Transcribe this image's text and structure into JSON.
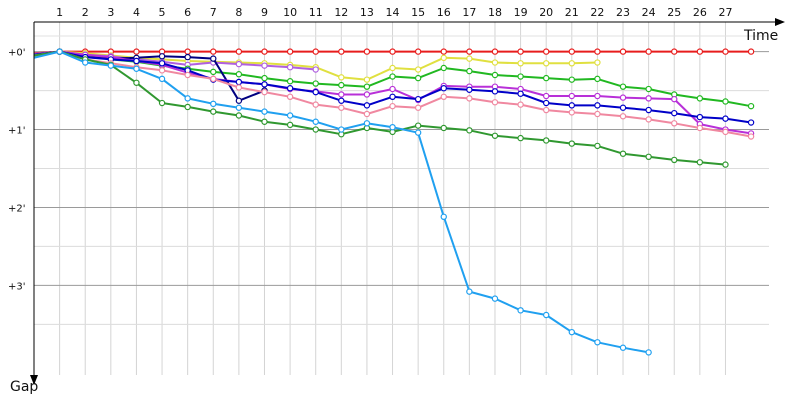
{
  "chart_data": {
    "type": "line",
    "xlabel": "Time",
    "ylabel": "Gap",
    "x_ticks": [
      "1",
      "2",
      "3",
      "4",
      "5",
      "6",
      "7",
      "8",
      "9",
      "10",
      "11",
      "12",
      "13",
      "14",
      "15",
      "16",
      "17",
      "18",
      "19",
      "20",
      "21",
      "22",
      "23",
      "24",
      "25",
      "26",
      "27"
    ],
    "y_ticks": [
      {
        "value": 0,
        "label": "+0'"
      },
      {
        "value": 1,
        "label": "+1'"
      },
      {
        "value": 2,
        "label": "+2'"
      },
      {
        "value": 3,
        "label": "+3'"
      }
    ],
    "xlim": [
      0,
      28.7
    ],
    "ylim": [
      -0.38,
      4.15
    ],
    "grid": true,
    "legend": "none",
    "series": [
      {
        "color": "#e81c1c",
        "values": [
          [
            0,
            0.02
          ],
          [
            1,
            0
          ],
          [
            2,
            0
          ],
          [
            3,
            0
          ],
          [
            4,
            0
          ],
          [
            5,
            0
          ],
          [
            6,
            0
          ],
          [
            7,
            0
          ],
          [
            8,
            0
          ],
          [
            9,
            0
          ],
          [
            10,
            0
          ],
          [
            11,
            0
          ],
          [
            12,
            0
          ],
          [
            13,
            0
          ],
          [
            14,
            0
          ],
          [
            15,
            0
          ],
          [
            16,
            0
          ],
          [
            17,
            0
          ],
          [
            18,
            0
          ],
          [
            19,
            0
          ],
          [
            20,
            0
          ],
          [
            21,
            0
          ],
          [
            22,
            0
          ],
          [
            23,
            0
          ],
          [
            24,
            0
          ],
          [
            25,
            0
          ],
          [
            26,
            0
          ],
          [
            27,
            0
          ],
          [
            28,
            0
          ]
        ]
      },
      {
        "color": "#e0e040",
        "values": [
          [
            0,
            0.04
          ],
          [
            1,
            0
          ],
          [
            2,
            0.02
          ],
          [
            3,
            0.05
          ],
          [
            4,
            0.08
          ],
          [
            5,
            0.1
          ],
          [
            6,
            0.12
          ],
          [
            7,
            0.13
          ],
          [
            8,
            0.14
          ],
          [
            9,
            0.15
          ],
          [
            10,
            0.17
          ],
          [
            11,
            0.2
          ],
          [
            12,
            0.33
          ],
          [
            13,
            0.36
          ],
          [
            14,
            0.21
          ],
          [
            15,
            0.23
          ],
          [
            16,
            0.08
          ],
          [
            17,
            0.09
          ],
          [
            18,
            0.14
          ],
          [
            19,
            0.15
          ],
          [
            20,
            0.15
          ],
          [
            21,
            0.15
          ],
          [
            22,
            0.14
          ]
        ]
      },
      {
        "color": "#b060e0",
        "values": [
          [
            0,
            0.03
          ],
          [
            1,
            0
          ],
          [
            2,
            0.04
          ],
          [
            3,
            0.06
          ],
          [
            4,
            0.1
          ],
          [
            5,
            0.13
          ],
          [
            6,
            0.17
          ],
          [
            7,
            0.14
          ],
          [
            8,
            0.16
          ],
          [
            9,
            0.18
          ],
          [
            10,
            0.2
          ],
          [
            11,
            0.23
          ]
        ]
      },
      {
        "color": "#21b821",
        "values": [
          [
            0,
            0.05
          ],
          [
            1,
            0
          ],
          [
            2,
            0.05
          ],
          [
            3,
            0.1
          ],
          [
            4,
            0.13
          ],
          [
            5,
            0.18
          ],
          [
            6,
            0.22
          ],
          [
            7,
            0.26
          ],
          [
            8,
            0.29
          ],
          [
            9,
            0.34
          ],
          [
            10,
            0.38
          ],
          [
            11,
            0.41
          ],
          [
            12,
            0.43
          ],
          [
            13,
            0.45
          ],
          [
            14,
            0.32
          ],
          [
            15,
            0.34
          ],
          [
            16,
            0.21
          ],
          [
            17,
            0.25
          ],
          [
            18,
            0.3
          ],
          [
            19,
            0.32
          ],
          [
            20,
            0.34
          ],
          [
            21,
            0.36
          ],
          [
            22,
            0.35
          ],
          [
            23,
            0.45
          ],
          [
            24,
            0.48
          ],
          [
            25,
            0.55
          ],
          [
            26,
            0.6
          ],
          [
            27,
            0.64
          ],
          [
            28,
            0.7
          ]
        ]
      },
      {
        "color": "#000080",
        "values": [
          [
            0,
            0.04
          ],
          [
            1,
            0
          ],
          [
            2,
            0.07
          ],
          [
            3,
            0.09
          ],
          [
            4,
            0.08
          ],
          [
            5,
            0.06
          ],
          [
            6,
            0.07
          ],
          [
            7,
            0.09
          ],
          [
            8,
            0.63
          ],
          [
            9,
            0.5
          ]
        ]
      },
      {
        "color": "#b830d8",
        "values": [
          [
            0,
            0.05
          ],
          [
            1,
            0
          ],
          [
            2,
            0.04
          ],
          [
            3,
            0.07
          ],
          [
            4,
            0.12
          ],
          [
            5,
            0.17
          ],
          [
            6,
            0.27
          ],
          [
            7,
            0.35
          ],
          [
            8,
            0.39
          ],
          [
            9,
            0.42
          ],
          [
            10,
            0.48
          ],
          [
            11,
            0.51
          ],
          [
            12,
            0.55
          ],
          [
            13,
            0.55
          ],
          [
            14,
            0.48
          ],
          [
            15,
            0.62
          ],
          [
            16,
            0.44
          ],
          [
            17,
            0.45
          ],
          [
            18,
            0.45
          ],
          [
            19,
            0.48
          ],
          [
            20,
            0.57
          ],
          [
            21,
            0.57
          ],
          [
            22,
            0.57
          ],
          [
            23,
            0.59
          ],
          [
            24,
            0.6
          ],
          [
            25,
            0.61
          ],
          [
            26,
            0.93
          ],
          [
            27,
            1.0
          ],
          [
            28,
            1.05
          ]
        ]
      },
      {
        "color": "#0000c8",
        "values": [
          [
            0,
            0.04
          ],
          [
            1,
            0
          ],
          [
            2,
            0.07
          ],
          [
            3,
            0.1
          ],
          [
            4,
            0.12
          ],
          [
            5,
            0.15
          ],
          [
            6,
            0.24
          ],
          [
            7,
            0.36
          ],
          [
            8,
            0.39
          ],
          [
            9,
            0.42
          ],
          [
            10,
            0.47
          ],
          [
            11,
            0.52
          ],
          [
            12,
            0.63
          ],
          [
            13,
            0.69
          ],
          [
            14,
            0.58
          ],
          [
            15,
            0.61
          ],
          [
            16,
            0.47
          ],
          [
            17,
            0.49
          ],
          [
            18,
            0.51
          ],
          [
            19,
            0.54
          ],
          [
            20,
            0.66
          ],
          [
            21,
            0.69
          ],
          [
            22,
            0.69
          ],
          [
            23,
            0.72
          ],
          [
            24,
            0.75
          ],
          [
            25,
            0.79
          ],
          [
            26,
            0.84
          ],
          [
            27,
            0.86
          ],
          [
            28,
            0.91
          ]
        ]
      },
      {
        "color": "#f088a0",
        "values": [
          [
            0,
            0.05
          ],
          [
            1,
            0
          ],
          [
            2,
            0.1
          ],
          [
            3,
            0.15
          ],
          [
            4,
            0.2
          ],
          [
            5,
            0.24
          ],
          [
            6,
            0.3
          ],
          [
            7,
            0.35
          ],
          [
            8,
            0.46
          ],
          [
            9,
            0.52
          ],
          [
            10,
            0.58
          ],
          [
            11,
            0.68
          ],
          [
            12,
            0.72
          ],
          [
            13,
            0.8
          ],
          [
            14,
            0.7
          ],
          [
            15,
            0.72
          ],
          [
            16,
            0.58
          ],
          [
            17,
            0.6
          ],
          [
            18,
            0.65
          ],
          [
            19,
            0.68
          ],
          [
            20,
            0.75
          ],
          [
            21,
            0.78
          ],
          [
            22,
            0.8
          ],
          [
            23,
            0.83
          ],
          [
            24,
            0.87
          ],
          [
            25,
            0.92
          ],
          [
            26,
            0.98
          ],
          [
            27,
            1.03
          ],
          [
            28,
            1.09
          ]
        ]
      },
      {
        "color": "#309830",
        "values": [
          [
            0,
            0.05
          ],
          [
            1,
            0
          ],
          [
            2,
            0.1
          ],
          [
            3,
            0.17
          ],
          [
            4,
            0.4
          ],
          [
            5,
            0.66
          ],
          [
            6,
            0.71
          ],
          [
            7,
            0.77
          ],
          [
            8,
            0.82
          ],
          [
            9,
            0.9
          ],
          [
            10,
            0.94
          ],
          [
            11,
            1.0
          ],
          [
            12,
            1.06
          ],
          [
            13,
            0.98
          ],
          [
            14,
            1.03
          ],
          [
            15,
            0.95
          ],
          [
            16,
            0.98
          ],
          [
            17,
            1.01
          ],
          [
            18,
            1.08
          ],
          [
            19,
            1.11
          ],
          [
            20,
            1.14
          ],
          [
            21,
            1.18
          ],
          [
            22,
            1.21
          ],
          [
            23,
            1.31
          ],
          [
            24,
            1.35
          ],
          [
            25,
            1.39
          ],
          [
            26,
            1.42
          ],
          [
            27,
            1.45
          ]
        ]
      },
      {
        "color": "#20a0f0",
        "values": [
          [
            0,
            0.08
          ],
          [
            1,
            0
          ],
          [
            2,
            0.14
          ],
          [
            3,
            0.18
          ],
          [
            4,
            0.22
          ],
          [
            5,
            0.35
          ],
          [
            6,
            0.6
          ],
          [
            7,
            0.67
          ],
          [
            8,
            0.72
          ],
          [
            9,
            0.77
          ],
          [
            10,
            0.82
          ],
          [
            11,
            0.9
          ],
          [
            12,
            1.0
          ],
          [
            13,
            0.92
          ],
          [
            14,
            0.97
          ],
          [
            15,
            1.04
          ],
          [
            16,
            2.12
          ],
          [
            17,
            3.08
          ],
          [
            18,
            3.17
          ],
          [
            19,
            3.32
          ],
          [
            20,
            3.38
          ],
          [
            21,
            3.6
          ],
          [
            22,
            3.73
          ],
          [
            23,
            3.8
          ],
          [
            24,
            3.86
          ]
        ]
      }
    ]
  }
}
